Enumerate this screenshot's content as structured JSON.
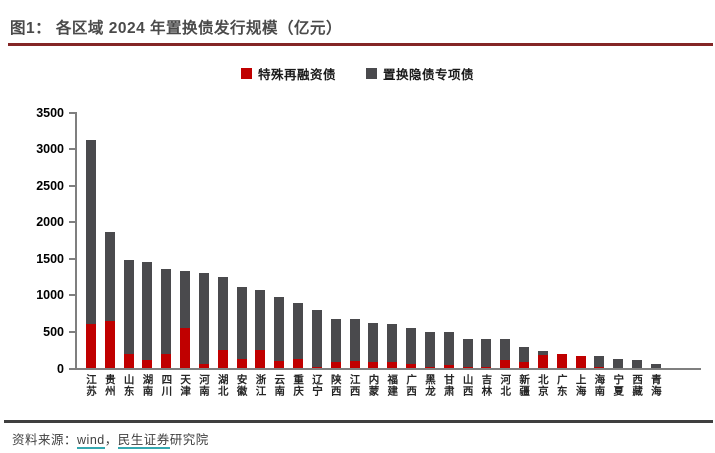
{
  "header": {
    "title": "图1： 各区域 2024 年置换债发行规模（亿元）",
    "title_rule_color": "#842626"
  },
  "chart_data": {
    "type": "bar",
    "stacked": true,
    "title": "各区域 2024 年置换债发行规模（亿元）",
    "unit": "亿元",
    "grid": false,
    "legend_position": "top-center",
    "ylim": [
      0,
      3500
    ],
    "yticks": [
      0,
      500,
      1000,
      1500,
      2000,
      2500,
      3000,
      3500
    ],
    "categories": [
      "江苏",
      "贵州",
      "山东",
      "湖南",
      "四川",
      "天津",
      "河南",
      "湖北",
      "安徽",
      "浙江",
      "云南",
      "重庆",
      "辽宁",
      "陕西",
      "江西",
      "内蒙",
      "福建",
      "广西",
      "黑龙",
      "甘肃",
      "山西",
      "吉林",
      "河北",
      "新疆",
      "北京",
      "广东",
      "上海",
      "海南",
      "宁夏",
      "西藏",
      "青海"
    ],
    "series": [
      {
        "name": "特殊再融资债",
        "color": "#c00000",
        "values": [
          610,
          650,
          195,
          115,
          195,
          550,
          55,
          250,
          125,
          250,
          105,
          125,
          20,
          95,
          100,
          95,
          90,
          55,
          15,
          50,
          15,
          15,
          115,
          90,
          180,
          205,
          170,
          20,
          0,
          0,
          0
        ]
      },
      {
        "name": "置换隐债专项债",
        "color": "#4a4a4d",
        "values": [
          2520,
          1210,
          1295,
          1340,
          1170,
          785,
          1255,
          1000,
          990,
          825,
          870,
          765,
          785,
          585,
          570,
          530,
          515,
          505,
          480,
          445,
          385,
          385,
          295,
          200,
          60,
          0,
          0,
          145,
          125,
          115,
          60
        ]
      }
    ]
  },
  "footer": {
    "prefix": "资料来源：",
    "link1": "wind",
    "separator": "，",
    "link2": "民生证券",
    "suffix": "研究院",
    "link_underline_color": "#35a8b0"
  }
}
